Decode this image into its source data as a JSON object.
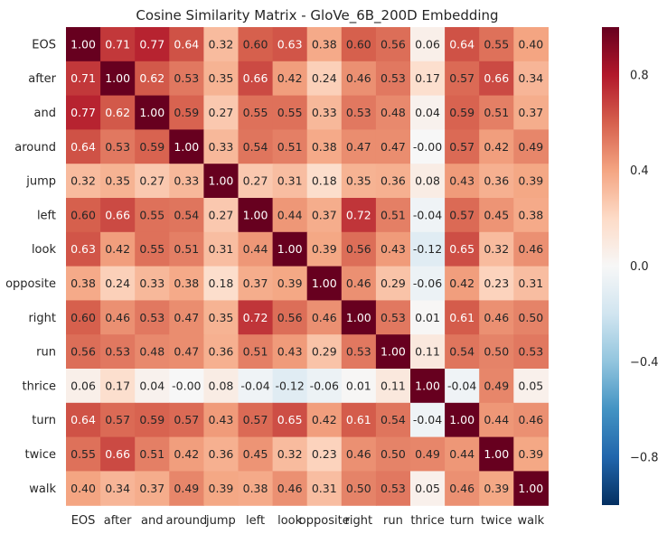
{
  "chart_data": {
    "type": "heatmap",
    "title": "Cosine Similarity Matrix - GloVe_6B_200D Embedding",
    "rows": [
      "EOS",
      "after",
      "and",
      "around",
      "jump",
      "left",
      "look",
      "opposite",
      "right",
      "run",
      "thrice",
      "turn",
      "twice",
      "walk"
    ],
    "columns": [
      "EOS",
      "after",
      "and",
      "around",
      "jump",
      "left",
      "look",
      "opposite",
      "right",
      "run",
      "thrice",
      "turn",
      "twice",
      "walk"
    ],
    "values": [
      [
        "1.00",
        "0.71",
        "0.77",
        "0.64",
        "0.32",
        "0.60",
        "0.63",
        "0.38",
        "0.60",
        "0.56",
        "0.06",
        "0.64",
        "0.55",
        "0.40"
      ],
      [
        "0.71",
        "1.00",
        "0.62",
        "0.53",
        "0.35",
        "0.66",
        "0.42",
        "0.24",
        "0.46",
        "0.53",
        "0.17",
        "0.57",
        "0.66",
        "0.34"
      ],
      [
        "0.77",
        "0.62",
        "1.00",
        "0.59",
        "0.27",
        "0.55",
        "0.55",
        "0.33",
        "0.53",
        "0.48",
        "0.04",
        "0.59",
        "0.51",
        "0.37"
      ],
      [
        "0.64",
        "0.53",
        "0.59",
        "1.00",
        "0.33",
        "0.54",
        "0.51",
        "0.38",
        "0.47",
        "0.47",
        "-0.00",
        "0.57",
        "0.42",
        "0.49"
      ],
      [
        "0.32",
        "0.35",
        "0.27",
        "0.33",
        "1.00",
        "0.27",
        "0.31",
        "0.18",
        "0.35",
        "0.36",
        "0.08",
        "0.43",
        "0.36",
        "0.39"
      ],
      [
        "0.60",
        "0.66",
        "0.55",
        "0.54",
        "0.27",
        "1.00",
        "0.44",
        "0.37",
        "0.72",
        "0.51",
        "-0.04",
        "0.57",
        "0.45",
        "0.38"
      ],
      [
        "0.63",
        "0.42",
        "0.55",
        "0.51",
        "0.31",
        "0.44",
        "1.00",
        "0.39",
        "0.56",
        "0.43",
        "-0.12",
        "0.65",
        "0.32",
        "0.46"
      ],
      [
        "0.38",
        "0.24",
        "0.33",
        "0.38",
        "0.18",
        "0.37",
        "0.39",
        "1.00",
        "0.46",
        "0.29",
        "-0.06",
        "0.42",
        "0.23",
        "0.31"
      ],
      [
        "0.60",
        "0.46",
        "0.53",
        "0.47",
        "0.35",
        "0.72",
        "0.56",
        "0.46",
        "1.00",
        "0.53",
        "0.01",
        "0.61",
        "0.46",
        "0.50"
      ],
      [
        "0.56",
        "0.53",
        "0.48",
        "0.47",
        "0.36",
        "0.51",
        "0.43",
        "0.29",
        "0.53",
        "1.00",
        "0.11",
        "0.54",
        "0.50",
        "0.53"
      ],
      [
        "0.06",
        "0.17",
        "0.04",
        "-0.00",
        "0.08",
        "-0.04",
        "-0.12",
        "-0.06",
        "0.01",
        "0.11",
        "1.00",
        "-0.04",
        "0.49",
        "0.05"
      ],
      [
        "0.64",
        "0.57",
        "0.59",
        "0.57",
        "0.43",
        "0.57",
        "0.65",
        "0.42",
        "0.61",
        "0.54",
        "-0.04",
        "1.00",
        "0.44",
        "0.46"
      ],
      [
        "0.55",
        "0.66",
        "0.51",
        "0.42",
        "0.36",
        "0.45",
        "0.32",
        "0.23",
        "0.46",
        "0.50",
        "0.49",
        "0.44",
        "1.00",
        "0.39"
      ],
      [
        "0.40",
        "0.34",
        "0.37",
        "0.49",
        "0.39",
        "0.38",
        "0.46",
        "0.31",
        "0.50",
        "0.53",
        "0.05",
        "0.46",
        "0.39",
        "1.00"
      ]
    ],
    "colorbar": {
      "range": [
        -1,
        1
      ],
      "ticks": [
        "0.8",
        "0.4",
        "0.0",
        "−0.4",
        "−0.8"
      ],
      "tick_values": [
        0.8,
        0.4,
        0.0,
        -0.4,
        -0.8
      ],
      "colormap": "RdBu_r",
      "colors": [
        "#053061",
        "#2166ac",
        "#4393c3",
        "#92c5de",
        "#d1e5f0",
        "#f7f7f7",
        "#fddbc7",
        "#f4a582",
        "#d6604d",
        "#b2182b",
        "#67001f"
      ]
    },
    "grid": false
  }
}
